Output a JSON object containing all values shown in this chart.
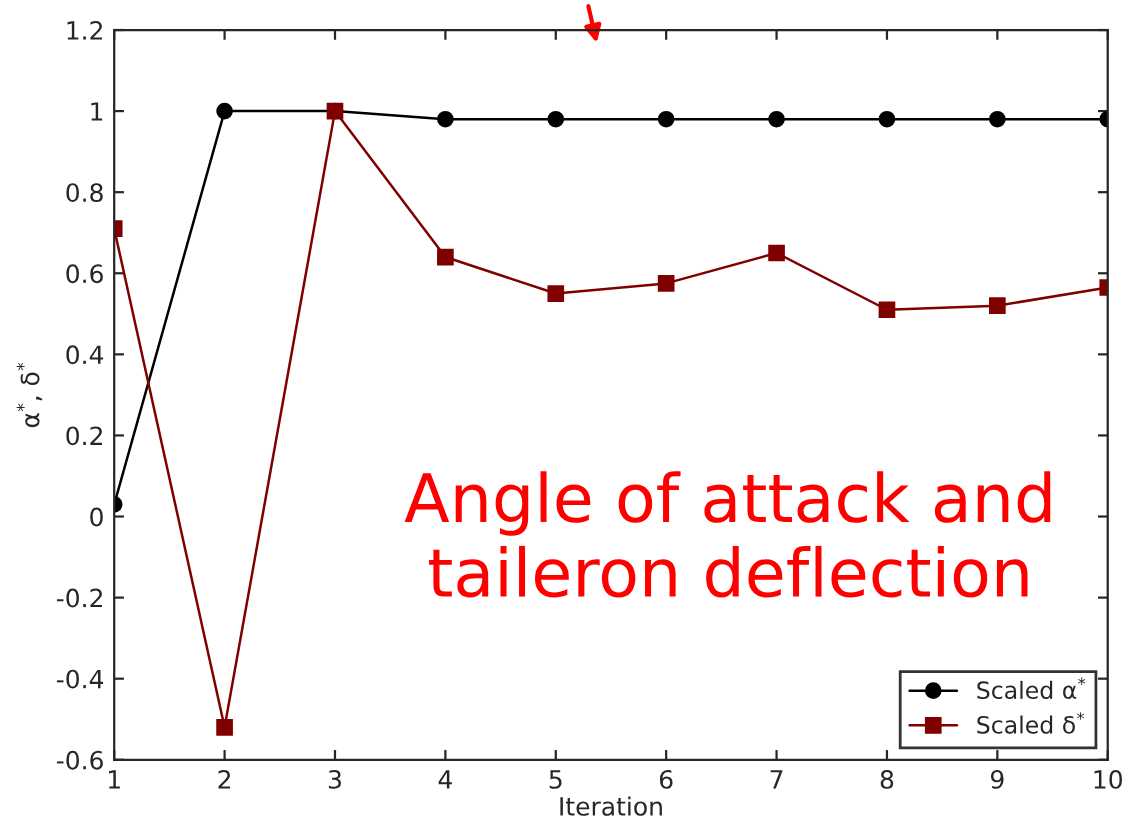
{
  "chart_data": {
    "type": "line",
    "xlabel": "Iteration",
    "ylabel": "α$^{*}$, δ$^{*}$",
    "x": [
      1,
      2,
      3,
      4,
      5,
      6,
      7,
      8,
      9,
      10
    ],
    "series": [
      {
        "name": "Scaled α$^{*}$",
        "color": "#000000",
        "marker": "circle",
        "values": [
          0.03,
          1.0,
          1.0,
          0.98,
          0.98,
          0.98,
          0.98,
          0.98,
          0.98,
          0.98
        ]
      },
      {
        "name": "Scaled δ$^{*}$",
        "color": "#800000",
        "marker": "square",
        "values": [
          0.71,
          -0.52,
          1.0,
          0.64,
          0.55,
          0.575,
          0.65,
          0.51,
          0.52,
          0.565
        ]
      }
    ],
    "xlim": [
      1,
      10
    ],
    "xticks": [
      1,
      2,
      3,
      4,
      5,
      6,
      7,
      8,
      9,
      10
    ],
    "ylim": [
      -0.6,
      1.2
    ],
    "yticks": [
      -0.6,
      -0.4,
      -0.2,
      0,
      0.2,
      0.4,
      0.6,
      0.8,
      1,
      1.2
    ],
    "annotations": [
      "Angle of attack and taileron deflection"
    ],
    "legend": "bottom right",
    "grid": false,
    "line_style": "solid"
  }
}
